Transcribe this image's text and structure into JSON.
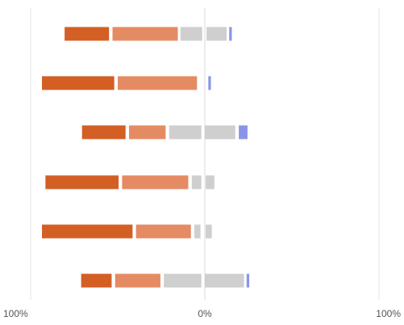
{
  "chart_data": {
    "type": "bar",
    "orientation": "horizontal",
    "stacking": "diverging",
    "x_axis": {
      "range": [
        -100,
        100
      ],
      "tick_values": [
        -100,
        0,
        100
      ],
      "tick_labels": [
        "100%",
        "0%",
        "100%"
      ]
    },
    "grid": true,
    "legend": "none",
    "rows": [
      {
        "segments": [
          {
            "color": "#D35F25",
            "start": -80.5,
            "end": -55.0
          },
          {
            "color": "#E58B63",
            "start": -53.0,
            "end": -15.5
          },
          {
            "color": "#CFCFCF",
            "start": -14.0,
            "end": -1.5
          },
          {
            "color": "#CFCFCF",
            "start": 1.0,
            "end": 12.5
          },
          {
            "color": "#8A94E8",
            "start": 14.0,
            "end": 15.5
          }
        ]
      },
      {
        "segments": [
          {
            "color": "#D35F25",
            "start": -93.5,
            "end": -52.0
          },
          {
            "color": "#E58B63",
            "start": -50.0,
            "end": -4.5
          },
          {
            "color": "#8A94E8",
            "start": 2.0,
            "end": 3.5
          }
        ]
      },
      {
        "segments": [
          {
            "color": "#D35F25",
            "start": -70.5,
            "end": -45.5
          },
          {
            "color": "#E58B63",
            "start": -43.5,
            "end": -22.5
          },
          {
            "color": "#CFCFCF",
            "start": -20.5,
            "end": -2.0
          },
          {
            "color": "#CFCFCF",
            "start": 0.0,
            "end": 17.5
          },
          {
            "color": "#8A94E8",
            "start": 19.5,
            "end": 24.5
          }
        ]
      },
      {
        "segments": [
          {
            "color": "#D35F25",
            "start": -91.5,
            "end": -49.5
          },
          {
            "color": "#E58B63",
            "start": -47.5,
            "end": -9.5
          },
          {
            "color": "#CFCFCF",
            "start": -7.5,
            "end": -2.0
          },
          {
            "color": "#CFCFCF",
            "start": 0.5,
            "end": 5.5
          }
        ]
      },
      {
        "segments": [
          {
            "color": "#D35F25",
            "start": -93.5,
            "end": -41.5
          },
          {
            "color": "#E58B63",
            "start": -39.5,
            "end": -8.0
          },
          {
            "color": "#CFCFCF",
            "start": -6.0,
            "end": -2.5
          },
          {
            "color": "#CFCFCF",
            "start": 0.5,
            "end": 4.0
          }
        ]
      },
      {
        "segments": [
          {
            "color": "#D35F25",
            "start": -71.0,
            "end": -53.5
          },
          {
            "color": "#E58B63",
            "start": -51.5,
            "end": -25.5
          },
          {
            "color": "#CFCFCF",
            "start": -23.5,
            "end": -2.0
          },
          {
            "color": "#CFCFCF",
            "start": 0.0,
            "end": 22.5
          },
          {
            "color": "#8A94E8",
            "start": 24.0,
            "end": 25.5
          }
        ]
      }
    ]
  }
}
